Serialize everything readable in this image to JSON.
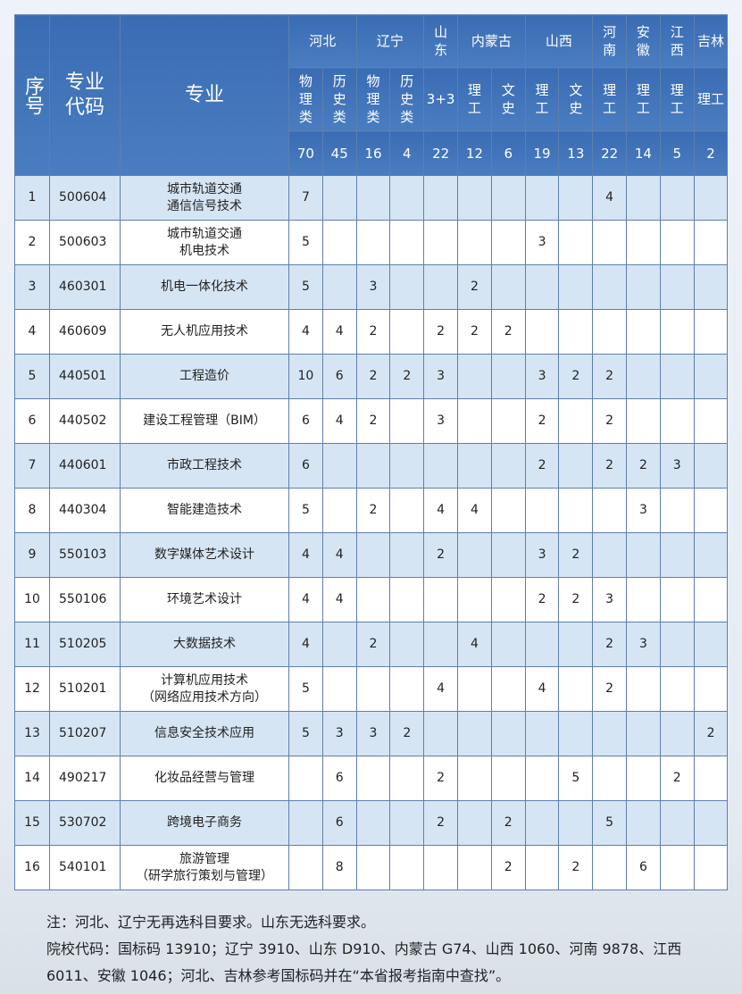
{
  "header": {
    "seq": "序号",
    "code": "专业代码",
    "major": "专业",
    "provinces": [
      {
        "name": "河北",
        "span": 2
      },
      {
        "name": "辽宁",
        "span": 2
      },
      {
        "name": "山东",
        "span": 1
      },
      {
        "name": "内蒙古",
        "span": 2
      },
      {
        "name": "山西",
        "span": 2
      },
      {
        "name": "河南",
        "span": 1
      },
      {
        "name": "安徽",
        "span": 1
      },
      {
        "name": "江西",
        "span": 1
      },
      {
        "name": "吉林",
        "span": 1
      }
    ],
    "subjects": [
      "物理类",
      "历史类",
      "物理类",
      "历史类",
      "3+3",
      "理工",
      "文史",
      "理工",
      "文史",
      "理工",
      "理工",
      "理工",
      "理工"
    ],
    "totals": [
      "70",
      "45",
      "16",
      "4",
      "22",
      "12",
      "6",
      "19",
      "13",
      "22",
      "14",
      "5",
      "2"
    ]
  },
  "rows": [
    {
      "seq": "1",
      "code": "500604",
      "major": "城市轨道交通\n通信信号技术",
      "values": [
        "7",
        "",
        "",
        "",
        "",
        "",
        "",
        "",
        "",
        "4",
        "",
        "",
        ""
      ]
    },
    {
      "seq": "2",
      "code": "500603",
      "major": "城市轨道交通\n机电技术",
      "values": [
        "5",
        "",
        "",
        "",
        "",
        "",
        "",
        "3",
        "",
        "",
        "",
        "",
        ""
      ]
    },
    {
      "seq": "3",
      "code": "460301",
      "major": "机电一体化技术",
      "values": [
        "5",
        "",
        "3",
        "",
        "",
        "2",
        "",
        "",
        "",
        "",
        "",
        "",
        ""
      ]
    },
    {
      "seq": "4",
      "code": "460609",
      "major": "无人机应用技术",
      "values": [
        "4",
        "4",
        "2",
        "",
        "2",
        "2",
        "2",
        "",
        "",
        "",
        "",
        "",
        ""
      ]
    },
    {
      "seq": "5",
      "code": "440501",
      "major": "工程造价",
      "values": [
        "10",
        "6",
        "2",
        "2",
        "3",
        "",
        "",
        "3",
        "2",
        "2",
        "",
        "",
        ""
      ]
    },
    {
      "seq": "6",
      "code": "440502",
      "major": "建设工程管理（BIM）",
      "values": [
        "6",
        "4",
        "2",
        "",
        "3",
        "",
        "",
        "2",
        "",
        "2",
        "",
        "",
        ""
      ]
    },
    {
      "seq": "7",
      "code": "440601",
      "major": "市政工程技术",
      "values": [
        "6",
        "",
        "",
        "",
        "",
        "",
        "",
        "2",
        "",
        "2",
        "2",
        "3",
        ""
      ]
    },
    {
      "seq": "8",
      "code": "440304",
      "major": "智能建造技术",
      "values": [
        "5",
        "",
        "2",
        "",
        "4",
        "4",
        "",
        "",
        "",
        "",
        "3",
        "",
        ""
      ]
    },
    {
      "seq": "9",
      "code": "550103",
      "major": "数字媒体艺术设计",
      "values": [
        "4",
        "4",
        "",
        "",
        "2",
        "",
        "",
        "3",
        "2",
        "",
        "",
        "",
        ""
      ]
    },
    {
      "seq": "10",
      "code": "550106",
      "major": "环境艺术设计",
      "values": [
        "4",
        "4",
        "",
        "",
        "",
        "",
        "",
        "2",
        "2",
        "3",
        "",
        "",
        ""
      ]
    },
    {
      "seq": "11",
      "code": "510205",
      "major": "大数据技术",
      "values": [
        "4",
        "",
        "2",
        "",
        "",
        "4",
        "",
        "",
        "",
        "2",
        "3",
        "",
        ""
      ]
    },
    {
      "seq": "12",
      "code": "510201",
      "major": "计算机应用技术\n（网络应用技术方向）",
      "values": [
        "5",
        "",
        "",
        "",
        "4",
        "",
        "",
        "4",
        "",
        "2",
        "",
        "",
        ""
      ]
    },
    {
      "seq": "13",
      "code": "510207",
      "major": "信息安全技术应用",
      "values": [
        "5",
        "3",
        "3",
        "2",
        "",
        "",
        "",
        "",
        "",
        "",
        "",
        "",
        "2"
      ]
    },
    {
      "seq": "14",
      "code": "490217",
      "major": "化妆品经营与管理",
      "values": [
        "",
        "6",
        "",
        "",
        "2",
        "",
        "",
        "",
        "5",
        "",
        "",
        "2",
        ""
      ]
    },
    {
      "seq": "15",
      "code": "530702",
      "major": "跨境电子商务",
      "values": [
        "",
        "6",
        "",
        "",
        "2",
        "",
        "2",
        "",
        "",
        "5",
        "",
        "",
        ""
      ]
    },
    {
      "seq": "16",
      "code": "540101",
      "major": "旅游管理\n（研学旅行策划与管理）",
      "values": [
        "",
        "8",
        "",
        "",
        "",
        "",
        "2",
        "",
        "2",
        "",
        "6",
        "",
        ""
      ]
    }
  ],
  "notes": {
    "line1": "注：河北、辽宁无再选科目要求。山东无选科要求。",
    "line2": "院校代码：国标码 13910；辽宁 3910、山东 D910、内蒙古 G74、山西 1060、河南 9878、江西 6011、安徽 1046；河北、吉林参考国标码并在“本省报考指南中查找”。"
  }
}
